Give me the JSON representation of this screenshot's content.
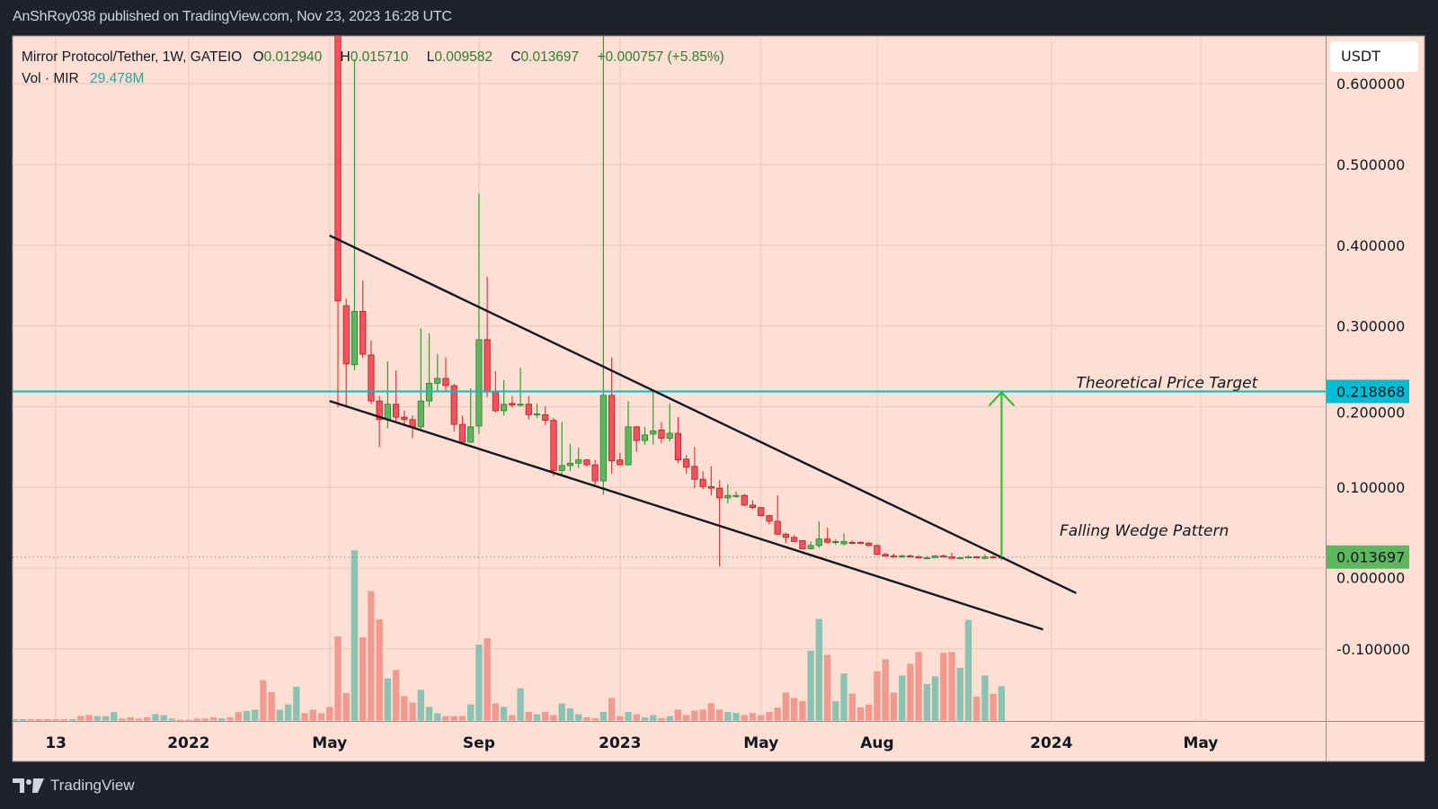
{
  "header": {
    "published": "AnShRoy038 published on TradingView.com, Nov 23, 2023 16:28 UTC"
  },
  "legend": {
    "symbol": "Mirror Protocol/Tether, 1W, GATEIO",
    "o_label": "O",
    "o": "0.012940",
    "h_label": "H",
    "h": "0.015710",
    "l_label": "L",
    "l": "0.009582",
    "c_label": "C",
    "c": "0.013697",
    "change": "+0.000757 (+5.85%)",
    "vol_label": "Vol · MIR",
    "vol": "29.478M"
  },
  "price_axis": {
    "currency": "USDT"
  },
  "footer": {
    "brand": "TradingView"
  },
  "colors": {
    "background": "#1e222d",
    "pane": "#fde0d3",
    "up": "#5cb85c",
    "up_border": "#2e7d32",
    "down": "#f2525e",
    "down_border": "#b71c1c",
    "vol_up": "#8cc2b2",
    "vol_down": "#f29a90",
    "target_line": "#00bcd4",
    "arrow": "#22c02a",
    "trendline": "#131722",
    "last_price": "#5cb85c"
  },
  "chart_data": {
    "type": "candlestick",
    "title": "Mirror Protocol/Tether, 1W, GATEIO",
    "ylim": [
      -0.15,
      0.66
    ],
    "y_ticks": [
      "0.600000",
      "0.500000",
      "0.400000",
      "0.300000",
      "0.200000",
      "0.100000",
      "0.000000",
      "-0.100000"
    ],
    "y_tick_values": [
      0.6,
      0.5,
      0.4,
      0.3,
      0.2,
      0.1,
      0,
      -0.1
    ],
    "x_ticks": [
      {
        "label": "13",
        "date": "2021-09-13"
      },
      {
        "label": "2022",
        "date": "2022-01-03"
      },
      {
        "label": "May",
        "date": "2022-05-02"
      },
      {
        "label": "Sep",
        "date": "2022-09-05"
      },
      {
        "label": "2023",
        "date": "2023-01-02"
      },
      {
        "label": "May",
        "date": "2023-05-01"
      },
      {
        "label": "Aug",
        "date": "2023-08-07"
      },
      {
        "label": "2024",
        "date": "2024-01-01"
      },
      {
        "label": "May",
        "date": "2024-05-06"
      }
    ],
    "xlim": [
      "2021-08-02",
      "2024-07-22"
    ],
    "grid": true,
    "candle_fields": [
      "week",
      "open",
      "high",
      "low",
      "close",
      "volume_pct_of_max"
    ],
    "candles": [
      [
        "2022-05-09",
        1.05,
        1.3,
        0.199,
        0.331,
        49.6
      ],
      [
        "2022-05-16",
        0.325,
        0.334,
        0.199,
        0.253,
        16.5
      ],
      [
        "2022-05-23",
        0.252,
        0.63,
        0.245,
        0.318,
        100
      ],
      [
        "2022-05-30",
        0.318,
        0.356,
        0.26,
        0.265,
        49.1
      ],
      [
        "2022-06-06",
        0.264,
        0.282,
        0.203,
        0.207,
        76.1
      ],
      [
        "2022-06-13",
        0.207,
        0.213,
        0.15,
        0.184,
        59.6
      ],
      [
        "2022-06-20",
        0.184,
        0.256,
        0.173,
        0.203,
        25.1
      ],
      [
        "2022-06-27",
        0.203,
        0.245,
        0.18,
        0.187,
        30.0
      ],
      [
        "2022-07-04",
        0.187,
        0.195,
        0.177,
        0.184,
        14.7
      ],
      [
        "2022-07-11",
        0.184,
        0.189,
        0.161,
        0.175,
        10.9
      ],
      [
        "2022-07-18",
        0.175,
        0.297,
        0.17,
        0.207,
        18.4
      ],
      [
        "2022-07-25",
        0.207,
        0.291,
        0.2,
        0.229,
        8.4
      ],
      [
        "2022-08-01",
        0.229,
        0.265,
        0.22,
        0.235,
        4.7
      ],
      [
        "2022-08-08",
        0.235,
        0.261,
        0.22,
        0.226,
        3.0
      ],
      [
        "2022-08-15",
        0.226,
        0.228,
        0.169,
        0.178,
        3.0
      ],
      [
        "2022-08-22",
        0.178,
        0.189,
        0.155,
        0.156,
        3.0
      ],
      [
        "2022-08-29",
        0.156,
        0.223,
        0.155,
        0.175,
        9.8
      ],
      [
        "2022-09-05",
        0.176,
        0.464,
        0.166,
        0.283,
        44.9
      ],
      [
        "2022-09-12",
        0.283,
        0.361,
        0.212,
        0.218,
        48.6
      ],
      [
        "2022-09-19",
        0.218,
        0.244,
        0.193,
        0.195,
        10.4
      ],
      [
        "2022-09-26",
        0.195,
        0.233,
        0.189,
        0.203,
        8.4
      ],
      [
        "2022-10-03",
        0.204,
        0.213,
        0.199,
        0.202,
        3.6
      ],
      [
        "2022-10-10",
        0.202,
        0.248,
        0.2,
        0.203,
        19.3
      ],
      [
        "2022-10-17",
        0.203,
        0.213,
        0.184,
        0.19,
        5.4
      ],
      [
        "2022-10-24",
        0.19,
        0.204,
        0.186,
        0.191,
        4.1
      ],
      [
        "2022-10-31",
        0.19,
        0.2,
        0.177,
        0.183,
        5.4
      ],
      [
        "2022-11-07",
        0.183,
        0.186,
        0.114,
        0.121,
        3.6
      ],
      [
        "2022-11-14",
        0.121,
        0.181,
        0.114,
        0.127,
        10.4
      ],
      [
        "2022-11-21",
        0.127,
        0.154,
        0.12,
        0.13,
        7.5
      ],
      [
        "2022-11-28",
        0.13,
        0.149,
        0.124,
        0.134,
        4.1
      ],
      [
        "2022-12-05",
        0.134,
        0.135,
        0.126,
        0.128,
        2.3
      ],
      [
        "2022-12-12",
        0.128,
        0.134,
        0.103,
        0.108,
        1.8
      ],
      [
        "2022-12-19",
        0.108,
        0.75,
        0.091,
        0.214,
        5.4
      ],
      [
        "2022-12-26",
        0.214,
        0.261,
        0.117,
        0.133,
        13.6
      ],
      [
        "2023-01-02",
        0.134,
        0.143,
        0.127,
        0.128,
        3.0
      ],
      [
        "2023-01-09",
        0.128,
        0.207,
        0.127,
        0.175,
        5.4
      ],
      [
        "2023-01-16",
        0.175,
        0.176,
        0.144,
        0.158,
        4.1
      ],
      [
        "2023-01-23",
        0.158,
        0.175,
        0.153,
        0.165,
        2.3
      ],
      [
        "2023-01-30",
        0.166,
        0.219,
        0.153,
        0.17,
        3.6
      ],
      [
        "2023-02-06",
        0.171,
        0.181,
        0.155,
        0.161,
        1.8
      ],
      [
        "2023-02-13",
        0.161,
        0.204,
        0.157,
        0.167,
        3.0
      ],
      [
        "2023-02-20",
        0.167,
        0.187,
        0.13,
        0.134,
        6.8
      ],
      [
        "2023-02-27",
        0.135,
        0.14,
        0.117,
        0.125,
        3.6
      ],
      [
        "2023-03-06",
        0.126,
        0.15,
        0.099,
        0.11,
        6.3
      ],
      [
        "2023-03-13",
        0.11,
        0.12,
        0.098,
        0.101,
        6.8
      ],
      [
        "2023-03-20",
        0.101,
        0.126,
        0.09,
        0.099,
        10.5
      ],
      [
        "2023-03-27",
        0.099,
        0.109,
        0.002,
        0.087,
        6.8
      ],
      [
        "2023-04-03",
        0.087,
        0.104,
        0.08,
        0.09,
        5.4
      ],
      [
        "2023-04-10",
        0.09,
        0.095,
        0.087,
        0.09,
        4.8
      ],
      [
        "2023-04-17",
        0.09,
        0.092,
        0.077,
        0.078,
        3.6
      ],
      [
        "2023-04-24",
        0.078,
        0.084,
        0.073,
        0.075,
        4.8
      ],
      [
        "2023-05-01",
        0.075,
        0.075,
        0.064,
        0.065,
        3.6
      ],
      [
        "2023-05-08",
        0.065,
        0.066,
        0.054,
        0.058,
        5.4
      ],
      [
        "2023-05-15",
        0.058,
        0.09,
        0.041,
        0.042,
        8.0
      ],
      [
        "2023-05-22",
        0.042,
        0.044,
        0.031,
        0.038,
        16.8
      ],
      [
        "2023-05-29",
        0.038,
        0.041,
        0.032,
        0.033,
        13.6
      ],
      [
        "2023-06-05",
        0.034,
        0.034,
        0.023,
        0.024,
        11.8
      ],
      [
        "2023-06-12",
        0.024,
        0.033,
        0.023,
        0.028,
        41.3
      ],
      [
        "2023-06-19",
        0.028,
        0.058,
        0.025,
        0.036,
        59.8
      ],
      [
        "2023-06-26",
        0.036,
        0.05,
        0.03,
        0.032,
        38.8
      ],
      [
        "2023-07-03",
        0.032,
        0.036,
        0.029,
        0.033,
        11.8
      ],
      [
        "2023-07-10",
        0.03,
        0.043,
        0.028,
        0.033,
        28.0
      ],
      [
        "2023-07-17",
        0.032,
        0.034,
        0.03,
        0.031,
        16.1
      ],
      [
        "2023-07-24",
        0.032,
        0.033,
        0.03,
        0.031,
        8.0
      ],
      [
        "2023-07-31",
        0.031,
        0.032,
        0.027,
        0.028,
        9.8
      ],
      [
        "2023-08-07",
        0.028,
        0.029,
        0.016,
        0.017,
        29.3
      ],
      [
        "2023-08-14",
        0.017,
        0.019,
        0.014,
        0.015,
        36.3
      ],
      [
        "2023-08-21",
        0.015,
        0.018,
        0.013,
        0.014,
        16.8
      ],
      [
        "2023-08-28",
        0.014,
        0.017,
        0.013,
        0.015,
        26.8
      ],
      [
        "2023-09-04",
        0.015,
        0.017,
        0.013,
        0.014,
        33.6
      ],
      [
        "2023-09-11",
        0.014,
        0.016,
        0.012,
        0.013,
        40.5
      ],
      [
        "2023-09-18",
        0.012,
        0.015,
        0.011,
        0.013,
        21.8
      ],
      [
        "2023-09-25",
        0.013,
        0.016,
        0.012,
        0.015,
        26.3
      ],
      [
        "2023-10-02",
        0.015,
        0.017,
        0.013,
        0.014,
        40.0
      ],
      [
        "2023-10-09",
        0.014,
        0.019,
        0.012,
        0.012,
        40.5
      ],
      [
        "2023-10-16",
        0.012,
        0.014,
        0.011,
        0.013,
        31.3
      ],
      [
        "2023-10-23",
        0.013,
        0.016,
        0.012,
        0.014,
        59.3
      ],
      [
        "2023-10-30",
        0.014,
        0.015,
        0.012,
        0.013,
        14.3
      ],
      [
        "2023-11-06",
        0.012,
        0.017,
        0.011,
        0.014,
        26.8
      ],
      [
        "2023-11-13",
        0.014,
        0.016,
        0.012,
        0.013,
        16.1
      ],
      [
        "2023-11-20",
        0.01294,
        0.01571,
        0.009582,
        0.013697,
        20.5
      ]
    ],
    "early_volume_fields": [
      "week",
      "up",
      "volume_pct_of_max"
    ],
    "early_volume": [
      [
        "2021-08-09",
        1,
        1.2
      ],
      [
        "2021-08-16",
        1,
        1.2
      ],
      [
        "2021-08-23",
        0,
        1.2
      ],
      [
        "2021-08-30",
        0,
        1.2
      ],
      [
        "2021-09-06",
        0,
        1.2
      ],
      [
        "2021-09-13",
        0,
        1.2
      ],
      [
        "2021-09-20",
        0,
        1.2
      ],
      [
        "2021-09-27",
        1,
        1.2
      ],
      [
        "2021-10-04",
        0,
        3.0
      ],
      [
        "2021-10-11",
        0,
        3.7
      ],
      [
        "2021-10-18",
        1,
        3.0
      ],
      [
        "2021-10-25",
        1,
        3.0
      ],
      [
        "2021-11-01",
        1,
        5.3
      ],
      [
        "2021-11-08",
        0,
        1.6
      ],
      [
        "2021-11-15",
        0,
        2.3
      ],
      [
        "2021-11-22",
        0,
        1.6
      ],
      [
        "2021-11-29",
        0,
        2.3
      ],
      [
        "2021-12-06",
        1,
        4.2
      ],
      [
        "2021-12-13",
        1,
        3.5
      ],
      [
        "2021-12-20",
        1,
        1.6
      ],
      [
        "2021-12-27",
        0,
        0.9
      ],
      [
        "2022-01-03",
        0,
        0.9
      ],
      [
        "2022-01-10",
        0,
        1.6
      ],
      [
        "2022-01-17",
        0,
        1.6
      ],
      [
        "2022-01-24",
        0,
        2.3
      ],
      [
        "2022-01-31",
        1,
        1.6
      ],
      [
        "2022-02-07",
        0,
        2.3
      ],
      [
        "2022-02-14",
        0,
        5.3
      ],
      [
        "2022-02-21",
        1,
        6.0
      ],
      [
        "2022-02-28",
        1,
        6.7
      ],
      [
        "2022-03-07",
        0,
        24.0
      ],
      [
        "2022-03-14",
        0,
        17.0
      ],
      [
        "2022-03-21",
        1,
        6.7
      ],
      [
        "2022-03-28",
        1,
        9.8
      ],
      [
        "2022-04-04",
        1,
        20.2
      ],
      [
        "2022-04-11",
        0,
        4.7
      ],
      [
        "2022-04-18",
        0,
        6.7
      ],
      [
        "2022-04-25",
        0,
        4.7
      ],
      [
        "2022-05-02",
        0,
        8.4
      ]
    ],
    "horizontal_line": {
      "price": 0.218868,
      "label": "0.218868"
    },
    "last_price": {
      "price": 0.013697,
      "label": "0.013697"
    },
    "trendlines": [
      {
        "from": [
          "2022-05-02",
          0.412
        ],
        "to": [
          "2024-01-22",
          -0.031
        ]
      },
      {
        "from": [
          "2022-05-02",
          0.207
        ],
        "to": [
          "2023-12-25",
          -0.076
        ]
      }
    ],
    "arrow": {
      "from": [
        "2023-11-20",
        0.013697
      ],
      "to": [
        "2023-11-20",
        0.218868
      ]
    },
    "annotations": [
      {
        "text": "Theoretical Price Target",
        "at": [
          "2024-01-22",
          0.223
        ]
      },
      {
        "text": "Falling Wedge Pattern",
        "at": [
          "2024-01-08",
          0.04
        ]
      }
    ]
  }
}
